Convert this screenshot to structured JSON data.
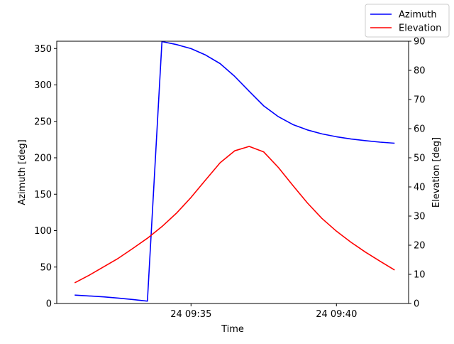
{
  "chart_data": {
    "type": "line",
    "xlabel": "Time",
    "x": [
      "09:31",
      "09:31:30",
      "09:32",
      "09:32:30",
      "09:33",
      "09:33:30",
      "09:34",
      "09:34:30",
      "09:35",
      "09:35:30",
      "09:36",
      "09:36:30",
      "09:37",
      "09:37:30",
      "09:38",
      "09:38:30",
      "09:39",
      "09:39:30",
      "09:40",
      "09:40:30",
      "09:41",
      "09:41:30",
      "09:42"
    ],
    "x_ticks": [
      "24 09:35",
      "24 09:40"
    ],
    "left_axis": {
      "label": "Azimuth [deg]",
      "ylim": [
        0,
        360
      ],
      "ticks": [
        "0",
        "50",
        "100",
        "150",
        "200",
        "250",
        "300",
        "350"
      ]
    },
    "right_axis": {
      "label": "Elevation [deg]",
      "ylim": [
        0,
        90
      ],
      "ticks": [
        "0",
        "10",
        "20",
        "30",
        "40",
        "50",
        "60",
        "70",
        "80",
        "90"
      ]
    },
    "series": [
      {
        "name": "Azimuth",
        "axis": "left",
        "color": "#0000ff",
        "values": [
          11.5,
          10.3,
          9.1,
          7.4,
          5.5,
          3.2,
          359.5,
          355.4,
          349.9,
          341.1,
          329.3,
          311.8,
          291.3,
          271.2,
          256.5,
          245.7,
          238.2,
          232.8,
          228.9,
          225.8,
          223.5,
          221.5,
          220.0
        ]
      },
      {
        "name": "Elevation",
        "axis": "right",
        "color": "#ff0000",
        "values": [
          7.1,
          9.7,
          12.6,
          15.5,
          18.9,
          22.4,
          26.4,
          31.0,
          36.4,
          42.4,
          48.3,
          52.4,
          53.9,
          52.0,
          46.7,
          40.5,
          34.5,
          29.2,
          24.8,
          21.0,
          17.6,
          14.5,
          11.5
        ]
      }
    ],
    "legend": {
      "placement": "top-right",
      "entries": [
        "Azimuth",
        "Elevation"
      ]
    },
    "grid": false
  }
}
